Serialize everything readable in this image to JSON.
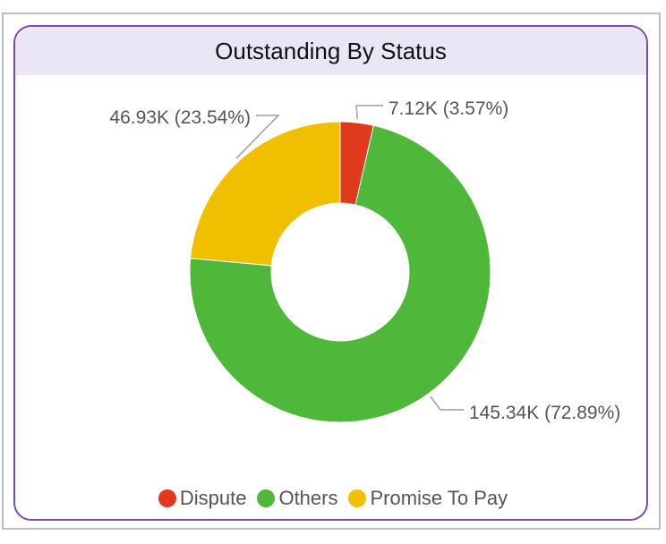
{
  "chart_data": {
    "type": "pie",
    "variant": "donut",
    "title": "Outstanding By Status",
    "categories": [
      "Dispute",
      "Others",
      "Promise To Pay"
    ],
    "values": [
      7.12,
      145.34,
      46.93
    ],
    "value_labels": [
      "7.12K (3.57%)",
      "145.34K (72.89%)",
      "46.93K (23.54%)"
    ],
    "percentages": [
      3.57,
      72.89,
      23.54
    ],
    "colors": [
      "#e0391c",
      "#4fb83b",
      "#f0c000"
    ],
    "legend_position": "bottom-center"
  }
}
